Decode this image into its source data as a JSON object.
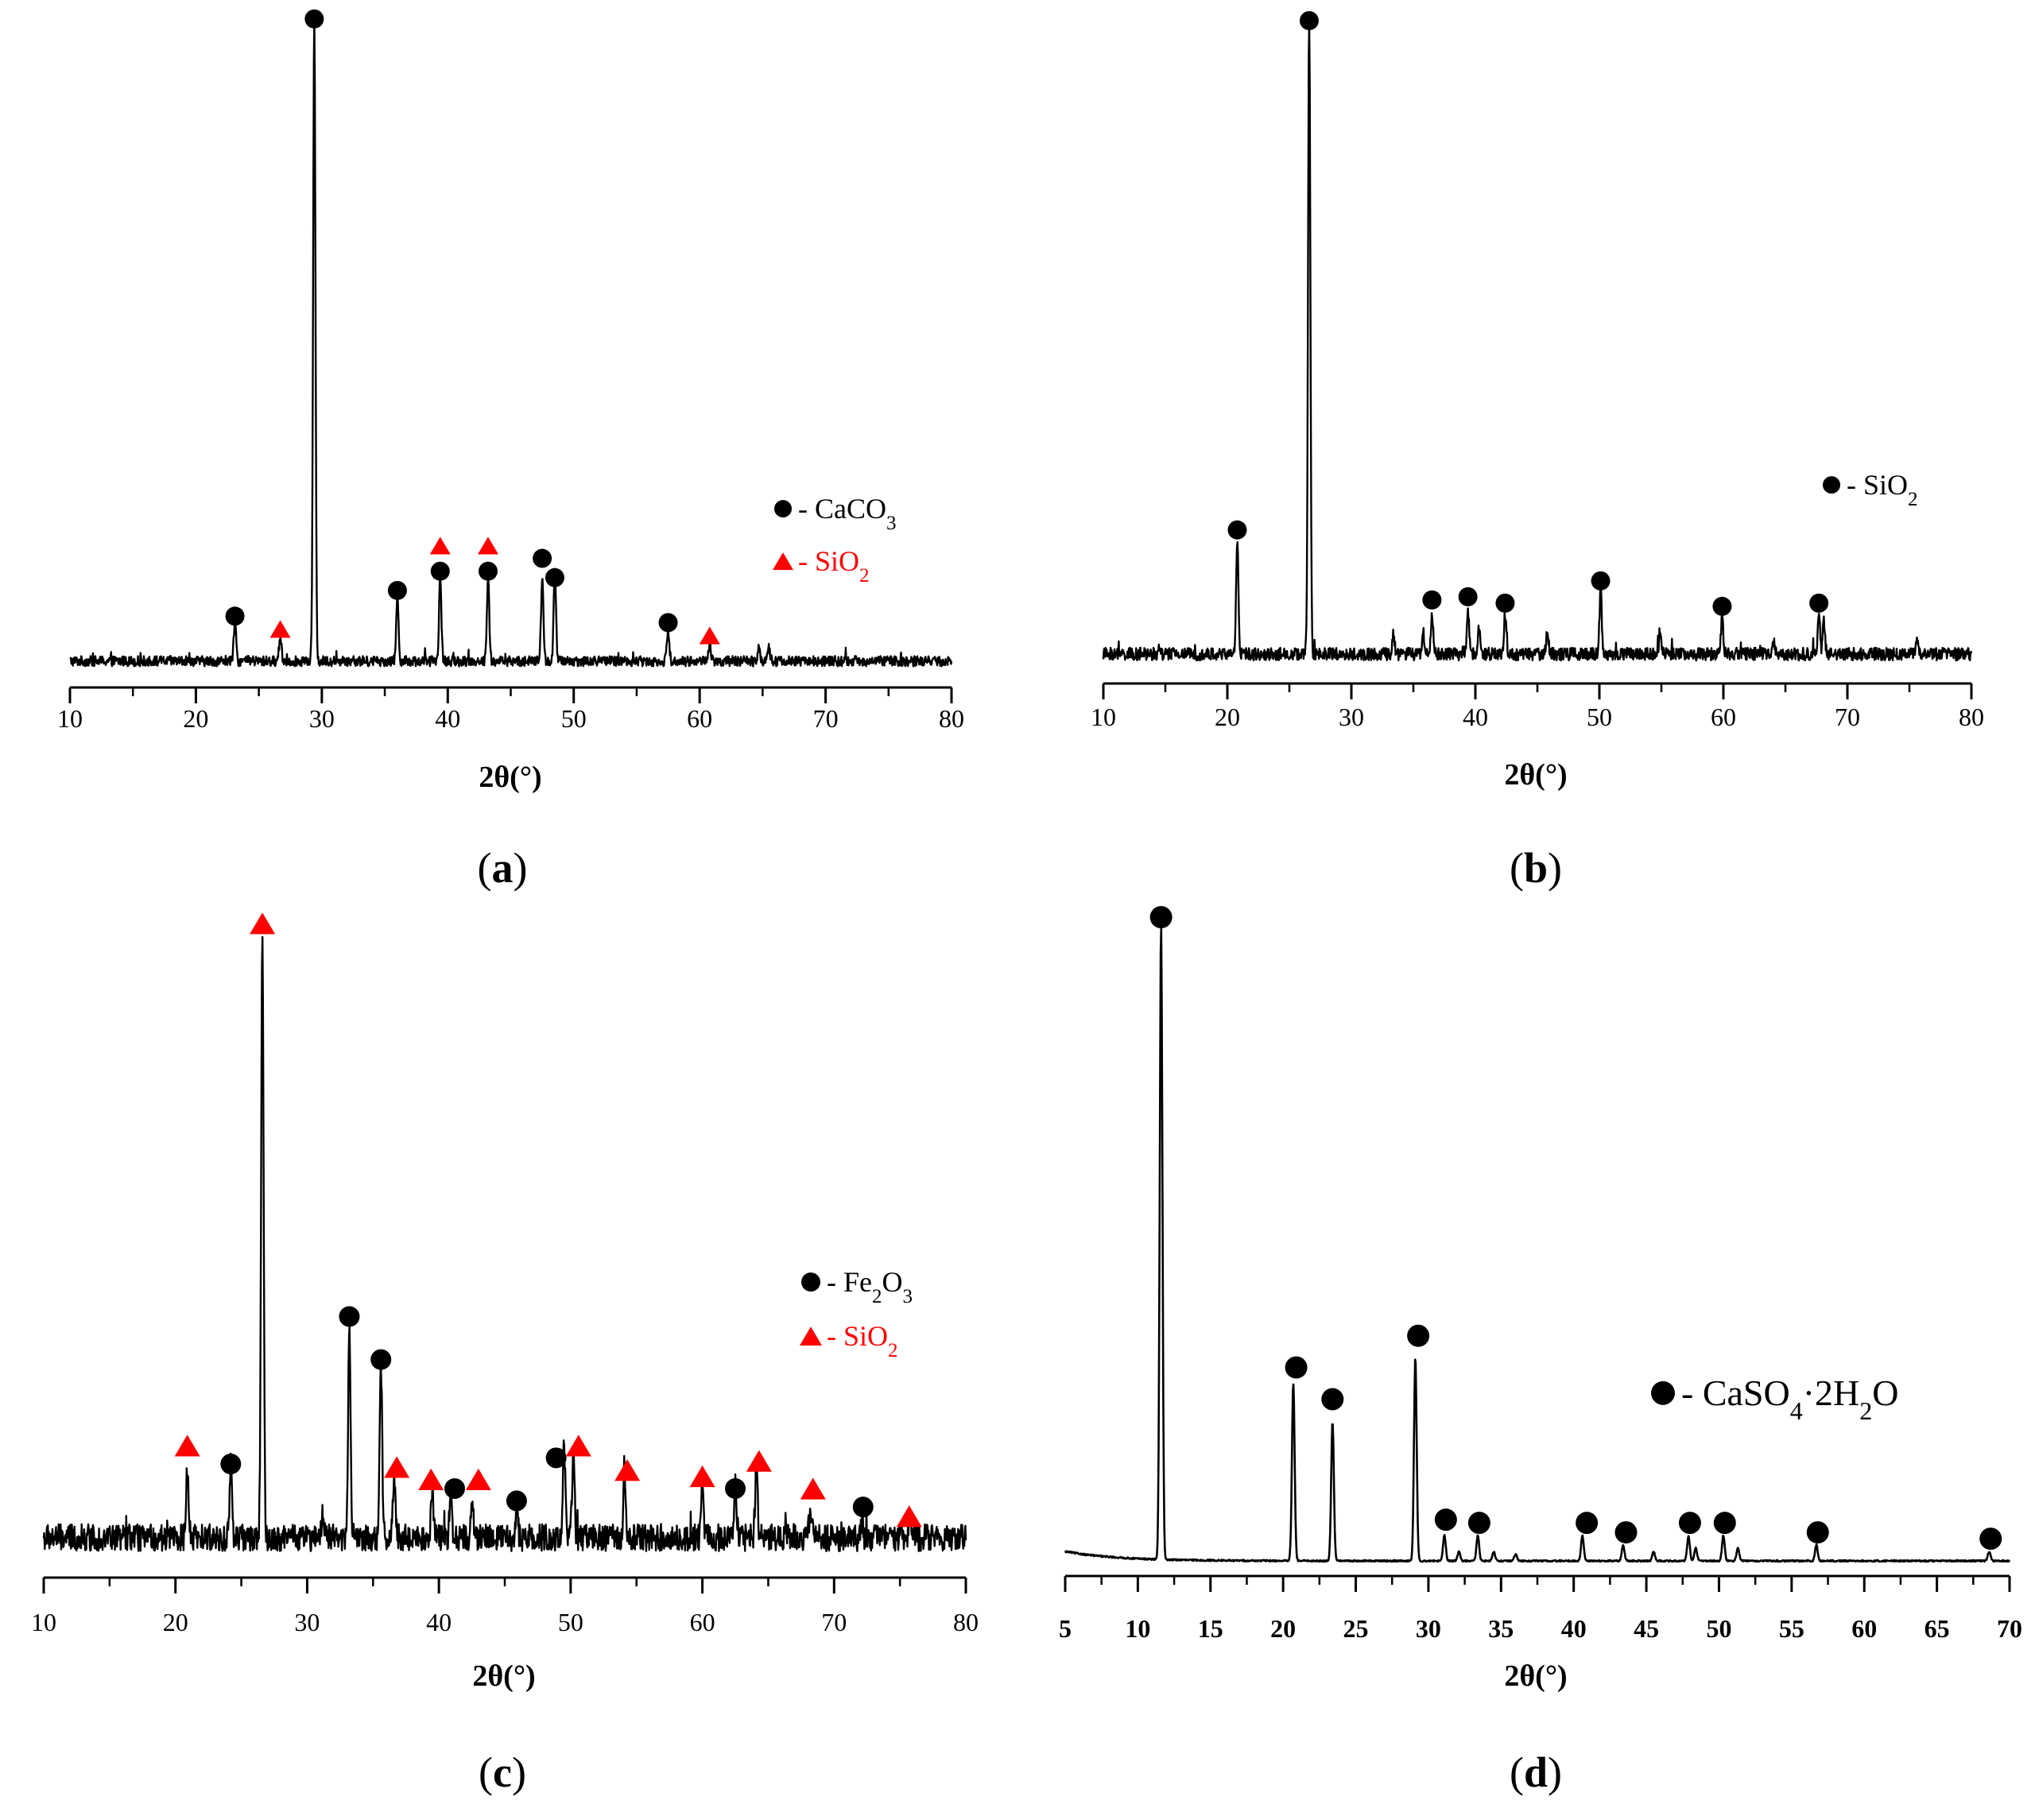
{
  "figure": {
    "panels": [
      "a",
      "b",
      "c",
      "d"
    ]
  },
  "chart_data": [
    {
      "id": "a",
      "type": "line",
      "caption_letter": "a",
      "xlabel": "2θ(°)",
      "xlim": [
        10,
        80
      ],
      "xticks": [
        10,
        20,
        30,
        40,
        50,
        60,
        70,
        80
      ],
      "tick_labels": [
        "10",
        "20",
        "30",
        "40",
        "50",
        "60",
        "70",
        "80"
      ],
      "ylabel": "",
      "ylim": [
        0,
        100
      ],
      "baseline": 2,
      "noise": 0.8,
      "colors": {
        "line": "#000000",
        "circle": "#000000",
        "triangle": "#ff0000"
      },
      "peaks": [
        {
          "x": 23.1,
          "h": 6
        },
        {
          "x": 26.7,
          "h": 4
        },
        {
          "x": 29.4,
          "h": 100
        },
        {
          "x": 36.0,
          "h": 10
        },
        {
          "x": 39.4,
          "h": 13
        },
        {
          "x": 43.2,
          "h": 13
        },
        {
          "x": 47.5,
          "h": 13
        },
        {
          "x": 48.5,
          "h": 14
        },
        {
          "x": 57.5,
          "h": 5
        },
        {
          "x": 60.8,
          "h": 3
        },
        {
          "x": 64.7,
          "h": 2.5
        },
        {
          "x": 65.5,
          "h": 2
        }
      ],
      "markers": [
        {
          "x": 23.1,
          "y": 9,
          "shape": "circle"
        },
        {
          "x": 26.7,
          "y": 7,
          "shape": "triangle"
        },
        {
          "x": 29.4,
          "y": 102,
          "shape": "circle"
        },
        {
          "x": 36.0,
          "y": 13,
          "shape": "circle"
        },
        {
          "x": 39.4,
          "y": 16,
          "shape": "circle"
        },
        {
          "x": 39.4,
          "y": 20,
          "shape": "triangle"
        },
        {
          "x": 43.2,
          "y": 16,
          "shape": "circle"
        },
        {
          "x": 43.2,
          "y": 20,
          "shape": "triangle"
        },
        {
          "x": 47.5,
          "y": 18,
          "shape": "circle"
        },
        {
          "x": 48.5,
          "y": 15,
          "shape": "circle"
        },
        {
          "x": 57.5,
          "y": 8,
          "shape": "circle"
        },
        {
          "x": 60.8,
          "y": 6,
          "shape": "triangle"
        }
      ],
      "legend": [
        {
          "shape": "circle",
          "color": "#000000",
          "prefix": " - ",
          "main": "CaCO",
          "sub": "3",
          "tail": ""
        },
        {
          "shape": "triangle",
          "color": "#ff0000",
          "prefix": " - ",
          "main": "SiO",
          "sub": "2",
          "tail": ""
        }
      ]
    },
    {
      "id": "b",
      "type": "line",
      "caption_letter": "b",
      "xlabel": "2θ(°)",
      "xlim": [
        10,
        80
      ],
      "xticks": [
        10,
        20,
        30,
        40,
        50,
        60,
        70,
        80
      ],
      "tick_labels": [
        "10",
        "20",
        "30",
        "40",
        "50",
        "60",
        "70",
        "80"
      ],
      "ylabel": "",
      "ylim": [
        0,
        100
      ],
      "baseline": 2.5,
      "noise": 1.0,
      "colors": {
        "line": "#000000",
        "circle": "#000000",
        "triangle": "#ff0000"
      },
      "peaks": [
        {
          "x": 20.8,
          "h": 18
        },
        {
          "x": 26.6,
          "h": 100
        },
        {
          "x": 33.4,
          "h": 3
        },
        {
          "x": 35.8,
          "h": 3.5
        },
        {
          "x": 36.5,
          "h": 6
        },
        {
          "x": 39.4,
          "h": 7
        },
        {
          "x": 40.3,
          "h": 4
        },
        {
          "x": 42.4,
          "h": 6.5
        },
        {
          "x": 45.8,
          "h": 4
        },
        {
          "x": 50.1,
          "h": 10
        },
        {
          "x": 54.9,
          "h": 4
        },
        {
          "x": 59.9,
          "h": 6
        },
        {
          "x": 64.0,
          "h": 2.5
        },
        {
          "x": 67.7,
          "h": 6
        },
        {
          "x": 68.1,
          "h": 5
        },
        {
          "x": 75.6,
          "h": 2.5
        }
      ],
      "markers": [
        {
          "x": 20.8,
          "y": 22,
          "shape": "circle"
        },
        {
          "x": 26.6,
          "y": 102,
          "shape": "circle"
        },
        {
          "x": 36.5,
          "y": 11,
          "shape": "circle"
        },
        {
          "x": 39.4,
          "y": 11.5,
          "shape": "circle"
        },
        {
          "x": 42.4,
          "y": 10.5,
          "shape": "circle"
        },
        {
          "x": 50.1,
          "y": 14,
          "shape": "circle"
        },
        {
          "x": 59.9,
          "y": 10,
          "shape": "circle"
        },
        {
          "x": 67.7,
          "y": 10.5,
          "shape": "circle"
        }
      ],
      "legend": [
        {
          "shape": "circle",
          "color": "#000000",
          "prefix": " - ",
          "main": "SiO",
          "sub": "2",
          "tail": ""
        }
      ]
    },
    {
      "id": "c",
      "type": "line",
      "caption_letter": "c",
      "xlabel": "2θ(°)",
      "xlim": [
        10,
        80
      ],
      "xticks": [
        10,
        20,
        30,
        40,
        50,
        60,
        70,
        80
      ],
      "tick_labels": [
        "10",
        "20",
        "30",
        "40",
        "50",
        "60",
        "70",
        "80"
      ],
      "ylabel": "",
      "ylim": [
        0,
        100
      ],
      "baseline": 3,
      "noise": 2.2,
      "colors": {
        "line": "#000000",
        "circle": "#000000",
        "triangle": "#ff0000"
      },
      "peaks": [
        {
          "x": 20.9,
          "h": 12
        },
        {
          "x": 24.2,
          "h": 12
        },
        {
          "x": 26.6,
          "h": 100
        },
        {
          "x": 31.2,
          "h": 4
        },
        {
          "x": 33.2,
          "h": 35
        },
        {
          "x": 35.6,
          "h": 28
        },
        {
          "x": 36.6,
          "h": 10
        },
        {
          "x": 39.5,
          "h": 8
        },
        {
          "x": 40.9,
          "h": 8
        },
        {
          "x": 42.5,
          "h": 7
        },
        {
          "x": 45.9,
          "h": 5
        },
        {
          "x": 49.5,
          "h": 15
        },
        {
          "x": 50.2,
          "h": 14
        },
        {
          "x": 54.1,
          "h": 10
        },
        {
          "x": 60.0,
          "h": 9
        },
        {
          "x": 62.5,
          "h": 10
        },
        {
          "x": 64.1,
          "h": 12
        },
        {
          "x": 68.2,
          "h": 5
        },
        {
          "x": 72.1,
          "h": 3
        },
        {
          "x": 75.8,
          "h": 3
        }
      ],
      "markers": [
        {
          "x": 20.9,
          "y": 18,
          "shape": "triangle"
        },
        {
          "x": 24.2,
          "y": 15,
          "shape": "circle"
        },
        {
          "x": 26.6,
          "y": 103,
          "shape": "triangle"
        },
        {
          "x": 33.2,
          "y": 39,
          "shape": "circle"
        },
        {
          "x": 35.6,
          "y": 32,
          "shape": "circle"
        },
        {
          "x": 36.8,
          "y": 14.5,
          "shape": "triangle"
        },
        {
          "x": 39.4,
          "y": 12.5,
          "shape": "triangle"
        },
        {
          "x": 41.2,
          "y": 11,
          "shape": "circle"
        },
        {
          "x": 43.0,
          "y": 12.5,
          "shape": "triangle"
        },
        {
          "x": 45.9,
          "y": 9,
          "shape": "circle"
        },
        {
          "x": 48.9,
          "y": 16,
          "shape": "circle"
        },
        {
          "x": 50.6,
          "y": 18,
          "shape": "triangle"
        },
        {
          "x": 54.3,
          "y": 14,
          "shape": "triangle"
        },
        {
          "x": 60.0,
          "y": 13,
          "shape": "triangle"
        },
        {
          "x": 62.5,
          "y": 11,
          "shape": "circle"
        },
        {
          "x": 64.3,
          "y": 15.5,
          "shape": "triangle"
        },
        {
          "x": 68.4,
          "y": 11,
          "shape": "triangle"
        },
        {
          "x": 72.2,
          "y": 8,
          "shape": "circle"
        },
        {
          "x": 75.7,
          "y": 6.5,
          "shape": "triangle"
        }
      ],
      "legend": [
        {
          "shape": "circle",
          "color": "#000000",
          "prefix": " - ",
          "main": "Fe",
          "sub": "2",
          "tail": "O",
          "sub2": "3"
        },
        {
          "shape": "triangle",
          "color": "#ff0000",
          "prefix": " - ",
          "main": "SiO",
          "sub": "2",
          "tail": ""
        }
      ]
    },
    {
      "id": "d",
      "type": "line",
      "caption_letter": "d",
      "xlabel": "2θ(°)",
      "xlim": [
        5,
        70
      ],
      "xticks": [
        5,
        10,
        15,
        20,
        25,
        30,
        35,
        40,
        45,
        50,
        55,
        60,
        65,
        70
      ],
      "tick_labels": [
        "5",
        "10",
        "15",
        "20",
        "25",
        "30",
        "35",
        "40",
        "45",
        "50",
        "55",
        "60",
        "65",
        "70"
      ],
      "ylabel": "",
      "ylim": [
        0,
        100
      ],
      "baseline": 0.5,
      "noise": 0.12,
      "decay": 1.5,
      "colors": {
        "line": "#000000",
        "circle": "#000000",
        "triangle": "#ff0000"
      },
      "peaks": [
        {
          "x": 11.6,
          "h": 100
        },
        {
          "x": 20.7,
          "h": 28
        },
        {
          "x": 23.4,
          "h": 22
        },
        {
          "x": 29.1,
          "h": 32
        },
        {
          "x": 31.1,
          "h": 4
        },
        {
          "x": 32.1,
          "h": 1.5
        },
        {
          "x": 33.4,
          "h": 4
        },
        {
          "x": 34.5,
          "h": 1.5
        },
        {
          "x": 36.0,
          "h": 1
        },
        {
          "x": 40.6,
          "h": 4
        },
        {
          "x": 43.4,
          "h": 2.5
        },
        {
          "x": 45.5,
          "h": 1.5
        },
        {
          "x": 47.9,
          "h": 4
        },
        {
          "x": 48.4,
          "h": 2
        },
        {
          "x": 50.3,
          "h": 4
        },
        {
          "x": 51.3,
          "h": 2
        },
        {
          "x": 56.7,
          "h": 2.5
        },
        {
          "x": 68.6,
          "h": 1.5
        }
      ],
      "markers": [
        {
          "x": 11.6,
          "y": 102,
          "shape": "circle"
        },
        {
          "x": 20.9,
          "y": 31,
          "shape": "circle"
        },
        {
          "x": 23.4,
          "y": 26,
          "shape": "circle"
        },
        {
          "x": 29.3,
          "y": 36,
          "shape": "circle"
        },
        {
          "x": 31.2,
          "y": 7,
          "shape": "circle"
        },
        {
          "x": 33.5,
          "y": 6.5,
          "shape": "circle"
        },
        {
          "x": 40.9,
          "y": 6.5,
          "shape": "circle"
        },
        {
          "x": 43.6,
          "y": 5,
          "shape": "circle"
        },
        {
          "x": 48.0,
          "y": 6.5,
          "shape": "circle"
        },
        {
          "x": 50.4,
          "y": 6.5,
          "shape": "circle"
        },
        {
          "x": 56.8,
          "y": 5,
          "shape": "circle"
        },
        {
          "x": 68.7,
          "y": 4,
          "shape": "circle"
        }
      ],
      "legend": [
        {
          "shape": "circle",
          "color": "#000000",
          "prefix": " - ",
          "main": "CaSO",
          "sub": "4",
          "tail": "·2H",
          "sub2": "2",
          "tail2": "O"
        }
      ]
    }
  ]
}
